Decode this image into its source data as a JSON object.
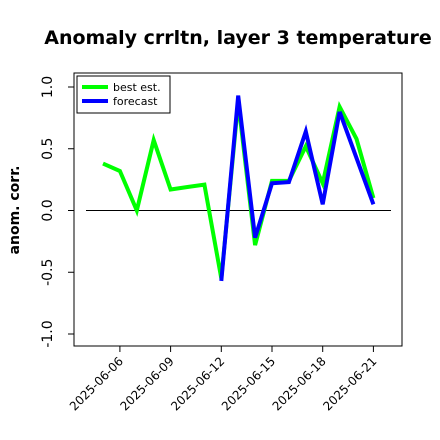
{
  "chart_data": {
    "type": "line",
    "title": "Anomaly crrltn, layer 3 temperature",
    "ylabel": "anom. corr.",
    "xlabel": "",
    "ylim": [
      -1.0,
      1.0
    ],
    "yticks": [
      "-1.0",
      "-0.5",
      "0.0",
      "0.5",
      "1.0"
    ],
    "ytick_values": [
      -1.0,
      -0.5,
      0.0,
      0.5,
      1.0
    ],
    "x": [
      "2025-06-05",
      "2025-06-06",
      "2025-06-07",
      "2025-06-08",
      "2025-06-09",
      "2025-06-10",
      "2025-06-11",
      "2025-06-12",
      "2025-06-13",
      "2025-06-14",
      "2025-06-15",
      "2025-06-16",
      "2025-06-17",
      "2025-06-18",
      "2025-06-19",
      "2025-06-20",
      "2025-06-21"
    ],
    "xticks": [
      "2025-06-06",
      "2025-06-09",
      "2025-06-12",
      "2025-06-15",
      "2025-06-18",
      "2025-06-21"
    ],
    "highlight_tick": "2025-06-12",
    "highlight_color": "#228b22",
    "reference_line": 0.0,
    "legend_position": "top-left",
    "grid": false,
    "series": [
      {
        "name": "best est.",
        "color": "#00ff00",
        "values": [
          0.38,
          0.32,
          0.0,
          0.57,
          0.17,
          0.19,
          0.21,
          -0.55,
          0.88,
          -0.28,
          0.24,
          0.24,
          0.52,
          0.22,
          0.84,
          0.58,
          0.1
        ]
      },
      {
        "name": "forecast",
        "color": "#0000ff",
        "values": [
          null,
          null,
          null,
          null,
          null,
          null,
          null,
          -0.57,
          0.93,
          -0.22,
          0.22,
          0.23,
          0.64,
          0.05,
          0.8,
          null,
          0.05
        ]
      }
    ]
  }
}
